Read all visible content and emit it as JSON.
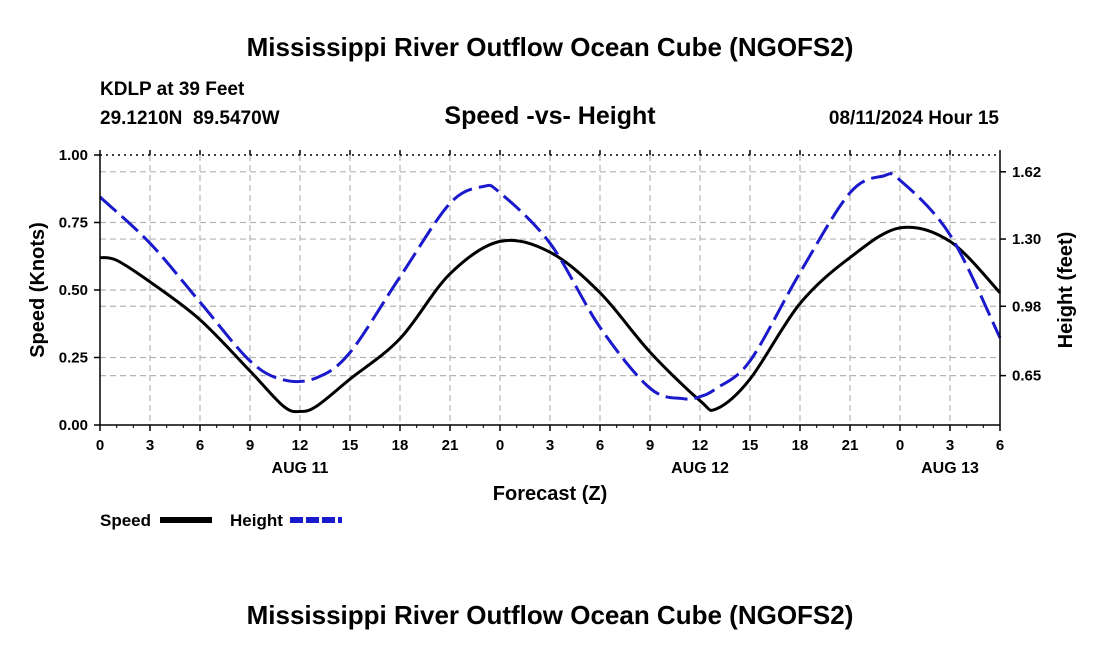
{
  "header": {
    "title": "Mississippi River Outflow Ocean Cube (NGOFS2)",
    "station": "KDLP at 39 Feet",
    "coords": "29.1210N  89.5470W",
    "subtitle": "Speed -vs- Height",
    "datetime": "08/11/2024 Hour 15",
    "bottom_title": "Mississippi River Outflow Ocean Cube (NGOFS2)"
  },
  "legend": {
    "speed_label": "Speed",
    "height_label": "Height"
  },
  "colors": {
    "speed": "#000000",
    "height": "#1a1acc",
    "grid": "#b4b4b4"
  },
  "chart_data": {
    "type": "line",
    "title": "Speed -vs- Height",
    "xlabel": "Forecast (Z)",
    "ylabel": "Speed (Knots)",
    "y2label": "Height (feet)",
    "xlim": [
      0,
      54
    ],
    "ylim": [
      0,
      1.0
    ],
    "y2lim": [
      0.415,
      1.7
    ],
    "x_ticks": [
      0,
      3,
      6,
      9,
      12,
      15,
      18,
      21,
      24,
      27,
      30,
      33,
      36,
      39,
      42,
      45,
      48,
      51,
      54
    ],
    "x_tick_labels": [
      "0",
      "3",
      "6",
      "9",
      "12",
      "15",
      "18",
      "21",
      "0",
      "3",
      "6",
      "9",
      "12",
      "15",
      "18",
      "21",
      "0",
      "3",
      "6"
    ],
    "day_labels": [
      {
        "x": 12,
        "label": "AUG 11"
      },
      {
        "x": 36,
        "label": "AUG 12"
      },
      {
        "x": 51,
        "label": "AUG 13"
      }
    ],
    "y_ticks": [
      0,
      0.25,
      0.5,
      0.75,
      1.0
    ],
    "y_tick_labels": [
      "0.00",
      "0.25",
      "0.50",
      "0.75",
      "1.00"
    ],
    "y2_ticks": [
      0.65,
      0.98,
      1.3,
      1.62
    ],
    "y2_tick_labels": [
      "0.65",
      "0.98",
      "1.30",
      "1.62"
    ],
    "grid": true,
    "series": [
      {
        "name": "Speed",
        "axis": "left",
        "style": "solid",
        "x": [
          0,
          1,
          3,
          6,
          9,
          11,
          12,
          13,
          15,
          18,
          21,
          24,
          27,
          30,
          33,
          36,
          37,
          39,
          42,
          45,
          48,
          51,
          54
        ],
        "values": [
          0.62,
          0.61,
          0.53,
          0.39,
          0.2,
          0.07,
          0.05,
          0.07,
          0.17,
          0.32,
          0.56,
          0.68,
          0.64,
          0.49,
          0.27,
          0.09,
          0.06,
          0.17,
          0.45,
          0.62,
          0.73,
          0.68,
          0.49
        ]
      },
      {
        "name": "Height",
        "axis": "right",
        "style": "dashed",
        "x": [
          0,
          3,
          6,
          9,
          11,
          13,
          15,
          18,
          21,
          23,
          24,
          27,
          30,
          33,
          35,
          36,
          37,
          39,
          42,
          45,
          47,
          48,
          51,
          54
        ],
        "values": [
          1.5,
          1.28,
          1.0,
          0.72,
          0.63,
          0.64,
          0.76,
          1.12,
          1.47,
          1.55,
          1.52,
          1.28,
          0.88,
          0.59,
          0.54,
          0.55,
          0.59,
          0.72,
          1.14,
          1.52,
          1.6,
          1.58,
          1.32,
          0.83
        ]
      }
    ]
  }
}
